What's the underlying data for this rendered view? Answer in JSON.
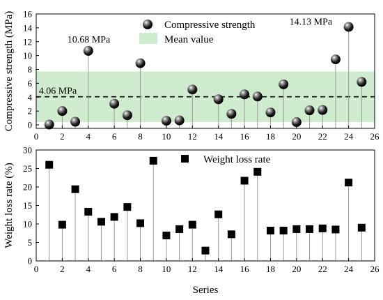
{
  "chart_data": [
    {
      "type": "scatter",
      "style": "stem",
      "ylabel": "Compressive strength (MPa)",
      "xlim": [
        0,
        26
      ],
      "ylim": [
        -0.5,
        16
      ],
      "xticks": [
        0,
        2,
        4,
        6,
        8,
        10,
        12,
        14,
        16,
        18,
        20,
        22,
        24,
        26
      ],
      "yticks": [
        0,
        2,
        4,
        6,
        8,
        10,
        12,
        14,
        16
      ],
      "legend_position": "top",
      "series": [
        {
          "name": "Compressive strength",
          "marker": "sphere",
          "color": "#000000",
          "x": [
            1,
            2,
            3,
            4,
            6,
            7,
            8,
            10,
            11,
            12,
            14,
            15,
            16,
            17,
            18,
            19,
            20,
            21,
            22,
            23,
            24,
            25
          ],
          "y": [
            0.05,
            2.0,
            0.45,
            10.68,
            3.05,
            1.4,
            8.9,
            0.6,
            0.65,
            5.1,
            3.7,
            1.6,
            4.4,
            4.1,
            1.8,
            5.85,
            0.4,
            2.1,
            2.15,
            9.45,
            14.13,
            6.2
          ]
        }
      ],
      "mean_band": {
        "name": "Mean value",
        "color": "#cfeccf",
        "low": 0.4,
        "high": 7.7,
        "mean": 4.06
      },
      "annotations": [
        {
          "text": "10.68 MPa",
          "x": 4,
          "y": 10.68
        },
        {
          "text": "14.13 MPa",
          "x": 24,
          "y": 14.13
        },
        {
          "text": "4.06 MPa",
          "x": 0.2,
          "y": 4.06
        }
      ]
    },
    {
      "type": "scatter",
      "style": "stem",
      "xlabel": "Series",
      "ylabel": "Weight loss rate (%)",
      "xlim": [
        0,
        26
      ],
      "ylim": [
        0,
        30
      ],
      "xticks": [
        0,
        2,
        4,
        6,
        8,
        10,
        12,
        14,
        16,
        18,
        20,
        22,
        24,
        26
      ],
      "yticks": [
        0,
        5,
        10,
        15,
        20,
        25,
        30
      ],
      "legend_position": "top",
      "series": [
        {
          "name": "Weight loss rate",
          "marker": "square",
          "color": "#000000",
          "x": [
            1,
            2,
            3,
            4,
            5,
            6,
            7,
            8,
            9,
            10,
            11,
            12,
            13,
            14,
            15,
            16,
            17,
            18,
            19,
            20,
            21,
            22,
            23,
            24,
            25
          ],
          "y": [
            26.0,
            9.8,
            19.4,
            13.3,
            10.6,
            11.9,
            14.6,
            10.2,
            27.1,
            6.9,
            8.6,
            9.8,
            2.8,
            12.6,
            7.2,
            21.7,
            24.1,
            8.2,
            8.2,
            8.6,
            8.6,
            8.8,
            8.5,
            21.2,
            9.0
          ]
        }
      ]
    }
  ]
}
